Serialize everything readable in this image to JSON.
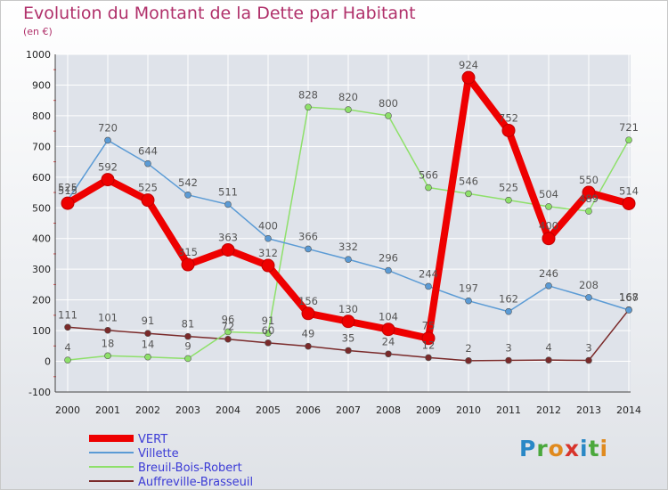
{
  "header": {
    "title": "Evolution du Montant de la Dette par Habitant",
    "subtitle": "(en €)"
  },
  "logo": {
    "letters": [
      "P",
      "r",
      "o",
      "x",
      "i",
      "t",
      "i"
    ],
    "colors": [
      "#2a88c6",
      "#4aa83c",
      "#e08a1e",
      "#d8342c",
      "#2a88c6",
      "#4aa83c",
      "#e08a1e"
    ]
  },
  "chart_data": {
    "type": "line",
    "title": "Evolution du Montant de la Dette par Habitant",
    "ylabel": "(en €)",
    "x": [
      "2000",
      "2001",
      "2002",
      "2003",
      "2004",
      "2005",
      "2006",
      "2007",
      "2008",
      "2009",
      "2010",
      "2011",
      "2012",
      "2013",
      "2014"
    ],
    "ylim": [
      -100,
      1000
    ],
    "yticks": [
      -100,
      0,
      100,
      200,
      300,
      400,
      500,
      600,
      700,
      800,
      900,
      1000
    ],
    "grid": true,
    "legend": "bottom-left",
    "series": [
      {
        "name": "VERT",
        "color": "#ee0000",
        "values": [
          515,
          592,
          525,
          315,
          363,
          312,
          156,
          130,
          104,
          75,
          924,
          752,
          400,
          550,
          514
        ]
      },
      {
        "name": "Villette",
        "color": "#5b9bd5",
        "values": [
          525,
          720,
          644,
          542,
          511,
          400,
          366,
          332,
          296,
          244,
          197,
          162,
          246,
          208,
          167
        ]
      },
      {
        "name": "Breuil-Bois-Robert",
        "color": "#8ee06a",
        "values": [
          4,
          18,
          14,
          9,
          96,
          91,
          828,
          820,
          800,
          566,
          546,
          525,
          504,
          489,
          721
        ]
      },
      {
        "name": "Auffreville-Brasseuil",
        "color": "#7a2a2a",
        "values": [
          111,
          101,
          91,
          81,
          72,
          60,
          49,
          35,
          24,
          12,
          2,
          3,
          4,
          3,
          168
        ]
      }
    ]
  }
}
